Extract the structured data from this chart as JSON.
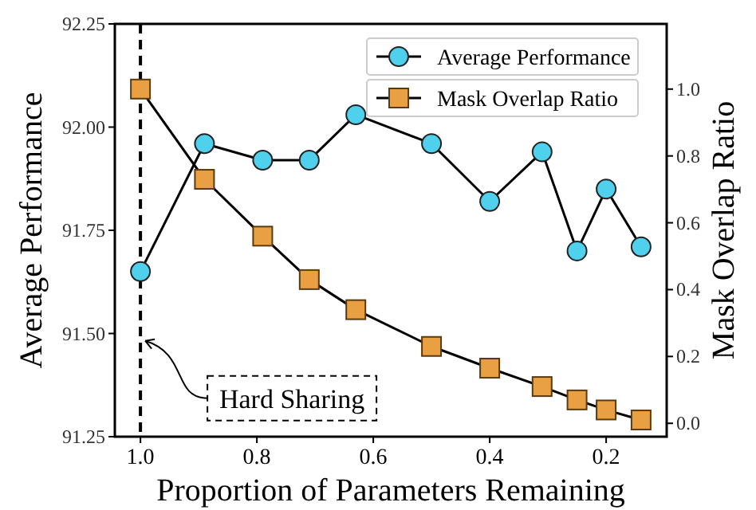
{
  "chart_data": {
    "type": "line",
    "xlabel": "Proportion of Parameters Remaining",
    "ylabel": "Average Performance",
    "y2label": "Mask Overlap Ratio",
    "x": [
      1.0,
      0.89,
      0.79,
      0.71,
      0.63,
      0.5,
      0.4,
      0.31,
      0.25,
      0.2,
      0.14
    ],
    "series": [
      {
        "name": "Average Performance",
        "color": "#4fd0ec",
        "marker": "circle",
        "values": [
          91.65,
          91.96,
          91.92,
          91.92,
          92.03,
          91.96,
          91.82,
          91.94,
          91.7,
          91.85,
          91.71
        ]
      },
      {
        "name": "Mask Overlap Ratio",
        "color": "#e8a043",
        "marker": "square",
        "axis": "y2",
        "values": [
          1.0,
          0.73,
          0.56,
          0.43,
          0.34,
          0.23,
          0.165,
          0.11,
          0.07,
          0.04,
          0.01
        ]
      }
    ],
    "xlim": [
      1.044,
      0.096
    ],
    "xticks": [
      {
        "value": 1.0,
        "label": "1.0"
      },
      {
        "value": 0.8,
        "label": "0.8"
      },
      {
        "value": 0.6,
        "label": "0.6"
      },
      {
        "value": 0.4,
        "label": "0.4"
      },
      {
        "value": 0.2,
        "label": "0.2"
      }
    ],
    "ylim": [
      91.25,
      92.25
    ],
    "yticks": [
      91.25,
      {
        "value": 91.5,
        "label": "91.50"
      },
      91.75,
      {
        "value": 92.0,
        "label": "92.00"
      },
      92.25
    ],
    "y2lim": [
      -0.04,
      1.195
    ],
    "y2ticks": [
      {
        "value": 0,
        "label": "0.0"
      },
      0.2,
      0.4,
      0.6,
      0.8,
      {
        "value": 1.0,
        "label": "1.0"
      }
    ],
    "ref_lines": [
      {
        "axis": "x",
        "value": 1.0,
        "line_style": "dashed",
        "color": "#000000"
      }
    ],
    "annotations": [
      {
        "text": "Hard Sharing",
        "x": 1.0,
        "y": 91.49
      }
    ],
    "legend": "top right",
    "grid": false,
    "line_style": "solid"
  }
}
